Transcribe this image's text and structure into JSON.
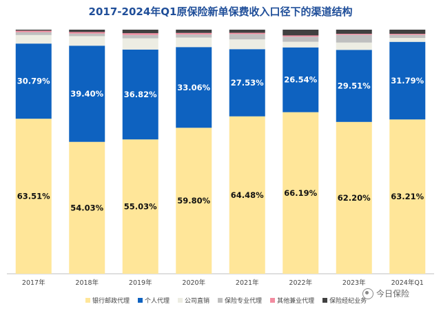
{
  "title": "2017-2024年Q1原保险新单保费收入口径下的渠道结构",
  "watermark": "今日保险",
  "chart_data": {
    "type": "bar",
    "stacked": true,
    "categories": [
      "2017年",
      "2018年",
      "2019年",
      "2020年",
      "2021年",
      "2022年",
      "2023年",
      "2024年Q1"
    ],
    "ylim": [
      0,
      100
    ],
    "legend_position": "bottom",
    "grid": false,
    "series": [
      {
        "name": "银行邮政代理",
        "color": "#FFE699",
        "values": [
          63.51,
          54.03,
          55.03,
          59.8,
          64.48,
          66.19,
          62.2,
          63.21
        ],
        "labels": [
          "63.51%",
          "54.03%",
          "55.03%",
          "59.80%",
          "64.48%",
          "66.19%",
          "62.20%",
          "63.21%"
        ]
      },
      {
        "name": "个人代理",
        "color": "#0E62C0",
        "values": [
          30.79,
          39.4,
          36.82,
          33.06,
          27.53,
          26.54,
          29.51,
          31.79
        ],
        "labels": [
          "30.79%",
          "39.40%",
          "36.82%",
          "33.06%",
          "27.53%",
          "26.54%",
          "29.51%",
          "31.79%"
        ]
      },
      {
        "name": "公司直销",
        "color": "#EDEDE3",
        "values": [
          3.5,
          3.9,
          4.6,
          3.9,
          4.0,
          2.3,
          3.0,
          1.6
        ]
      },
      {
        "name": "保险专业代理",
        "color": "#BFBFBF",
        "values": [
          1.2,
          1.1,
          1.4,
          1.3,
          2.2,
          2.1,
          3.2,
          1.3
        ]
      },
      {
        "name": "其他兼业代理",
        "color": "#F28CA0",
        "values": [
          0.6,
          0.6,
          0.7,
          0.6,
          0.5,
          0.5,
          0.4,
          0.4
        ]
      },
      {
        "name": "保险经纪业务",
        "color": "#404040",
        "values": [
          0.4,
          0.97,
          1.45,
          1.34,
          1.29,
          2.37,
          1.69,
          1.7
        ]
      }
    ]
  }
}
